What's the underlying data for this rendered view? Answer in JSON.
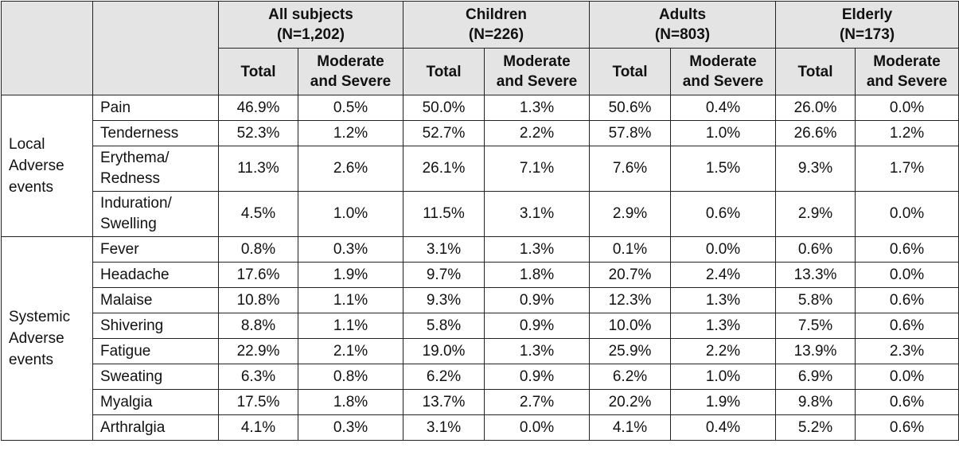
{
  "header": {
    "groups": [
      {
        "name": "All subjects",
        "n": "(N=1,202)"
      },
      {
        "name": "Children",
        "n": "(N=226)"
      },
      {
        "name": "Adults",
        "n": "(N=803)"
      },
      {
        "name": "Elderly",
        "n": "(N=173)"
      }
    ],
    "sub_total": "Total",
    "sub_ms_1": "Moderate",
    "sub_ms_2": "and Severe"
  },
  "sections": [
    {
      "label_lines": [
        "Local",
        "Adverse",
        "events"
      ],
      "rows": [
        {
          "item": [
            "Pain"
          ],
          "values": [
            "46.9%",
            "0.5%",
            "50.0%",
            "1.3%",
            "50.6%",
            "0.4%",
            "26.0%",
            "0.0%"
          ]
        },
        {
          "item": [
            "Tenderness"
          ],
          "values": [
            "52.3%",
            "1.2%",
            "52.7%",
            "2.2%",
            "57.8%",
            "1.0%",
            "26.6%",
            "1.2%"
          ]
        },
        {
          "item": [
            "Erythema/",
            "Redness"
          ],
          "values": [
            "11.3%",
            "2.6%",
            "26.1%",
            "7.1%",
            "7.6%",
            "1.5%",
            "9.3%",
            "1.7%"
          ]
        },
        {
          "item": [
            "Induration/",
            "Swelling"
          ],
          "values": [
            "4.5%",
            "1.0%",
            "11.5%",
            "3.1%",
            "2.9%",
            "0.6%",
            "2.9%",
            "0.0%"
          ]
        }
      ]
    },
    {
      "label_lines": [
        "Systemic",
        "Adverse",
        "events"
      ],
      "rows": [
        {
          "item": [
            "Fever"
          ],
          "values": [
            "0.8%",
            "0.3%",
            "3.1%",
            "1.3%",
            "0.1%",
            "0.0%",
            "0.6%",
            "0.6%"
          ]
        },
        {
          "item": [
            "Headache"
          ],
          "values": [
            "17.6%",
            "1.9%",
            "9.7%",
            "1.8%",
            "20.7%",
            "2.4%",
            "13.3%",
            "0.0%"
          ]
        },
        {
          "item": [
            "Malaise"
          ],
          "values": [
            "10.8%",
            "1.1%",
            "9.3%",
            "0.9%",
            "12.3%",
            "1.3%",
            "5.8%",
            "0.6%"
          ]
        },
        {
          "item": [
            "Shivering"
          ],
          "values": [
            "8.8%",
            "1.1%",
            "5.8%",
            "0.9%",
            "10.0%",
            "1.3%",
            "7.5%",
            "0.6%"
          ]
        },
        {
          "item": [
            "Fatigue"
          ],
          "values": [
            "22.9%",
            "2.1%",
            "19.0%",
            "1.3%",
            "25.9%",
            "2.2%",
            "13.9%",
            "2.3%"
          ]
        },
        {
          "item": [
            "Sweating"
          ],
          "values": [
            "6.3%",
            "0.8%",
            "6.2%",
            "0.9%",
            "6.2%",
            "1.0%",
            "6.9%",
            "0.0%"
          ]
        },
        {
          "item": [
            "Myalgia"
          ],
          "values": [
            "17.5%",
            "1.8%",
            "13.7%",
            "2.7%",
            "20.2%",
            "1.9%",
            "9.8%",
            "0.6%"
          ]
        },
        {
          "item": [
            "Arthralgia"
          ],
          "values": [
            "4.1%",
            "0.3%",
            "3.1%",
            "0.0%",
            "4.1%",
            "0.4%",
            "5.2%",
            "0.6%"
          ]
        }
      ]
    }
  ]
}
